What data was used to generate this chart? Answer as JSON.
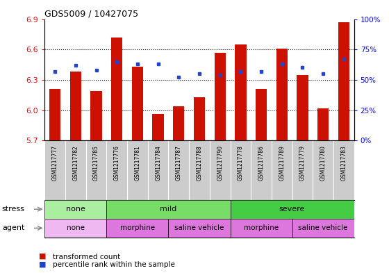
{
  "title": "GDS5009 / 10427075",
  "samples": [
    "GSM1217777",
    "GSM1217782",
    "GSM1217785",
    "GSM1217776",
    "GSM1217781",
    "GSM1217784",
    "GSM1217787",
    "GSM1217788",
    "GSM1217790",
    "GSM1217778",
    "GSM1217786",
    "GSM1217789",
    "GSM1217779",
    "GSM1217780",
    "GSM1217783"
  ],
  "transformed_count": [
    6.21,
    6.38,
    6.19,
    6.72,
    6.43,
    5.96,
    6.04,
    6.13,
    6.57,
    6.65,
    6.21,
    6.61,
    6.35,
    6.02,
    6.87
  ],
  "percentile_rank": [
    57,
    62,
    58,
    65,
    63,
    63,
    52,
    55,
    54,
    57,
    57,
    63,
    60,
    55,
    67
  ],
  "ylim_left": [
    5.7,
    6.9
  ],
  "ylim_right": [
    0,
    100
  ],
  "yticks_left": [
    5.7,
    6.0,
    6.3,
    6.6,
    6.9
  ],
  "yticks_right": [
    0,
    25,
    50,
    75,
    100
  ],
  "ytick_labels_right": [
    "0%",
    "25%",
    "50%",
    "75%",
    "100%"
  ],
  "bar_color": "#cc1100",
  "dot_color": "#2244cc",
  "bg_color": "#ffffff",
  "xticklabel_bg": "#cccccc",
  "stress_groups": [
    {
      "label": "none",
      "start": 0,
      "end": 3,
      "color": "#aaeea0"
    },
    {
      "label": "mild",
      "start": 3,
      "end": 9,
      "color": "#77dd66"
    },
    {
      "label": "severe",
      "start": 9,
      "end": 15,
      "color": "#44cc44"
    }
  ],
  "agent_groups": [
    {
      "label": "none",
      "start": 0,
      "end": 3,
      "color": "#f0b8f0"
    },
    {
      "label": "morphine",
      "start": 3,
      "end": 6,
      "color": "#dd77dd"
    },
    {
      "label": "saline vehicle",
      "start": 6,
      "end": 9,
      "color": "#dd77dd"
    },
    {
      "label": "morphine",
      "start": 9,
      "end": 12,
      "color": "#dd77dd"
    },
    {
      "label": "saline vehicle",
      "start": 12,
      "end": 15,
      "color": "#dd77dd"
    }
  ],
  "legend_items": [
    "transformed count",
    "percentile rank within the sample"
  ],
  "legend_colors": [
    "#cc1100",
    "#2244cc"
  ],
  "bar_width": 0.55,
  "base_value": 5.7
}
